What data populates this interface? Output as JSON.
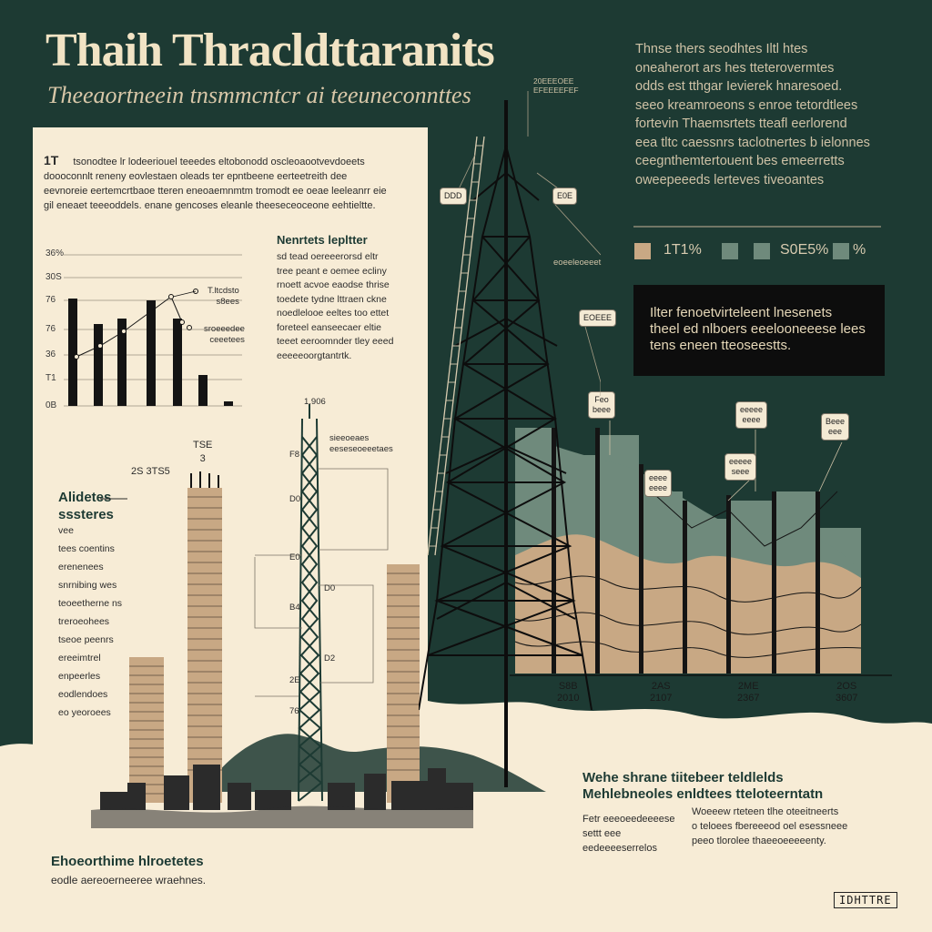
{
  "colors": {
    "dark_teal": "#1d3a33",
    "cream": "#f7ecd6",
    "sage": "#6f8a7c",
    "tan": "#c8a884",
    "ink": "#141414"
  },
  "header": {
    "title": "Thaih Thracldttaranits",
    "subtitle": "Theeaortneein tnsmmcntcr ai teeuneconnttes"
  },
  "top_right_text": [
    "Thnse thers seodhtes Iltl htes",
    "oneaherort ars hes tteterovermtes",
    "odds est tthgar Ievierek hnaresoed.",
    "seeo kreamroeons s enroe tetordtlees",
    "fortevin Thaemsrtets tteafl eerlorend",
    "eea tltc caessnrs taclotnertes b ielonnes",
    "ceegnthemtertouent bes emeerretts",
    "oweepeeeds lerteves tiveoantes"
  ],
  "panel": {
    "intro_number": "1T",
    "intro_lines": [
      "tsonodtee lr lodeeriouel  teeedes eltobonodd  oscleoaootvevdoeets",
      "doooconnlt reneny eovlestaen oleads  ter epntbeene eerteetreith dee",
      "eevnoreie eertemcrtbaoe tteren eneoaemnmtm tromodt ee oeae  leeleanrr eie",
      "gil eneaet  teeeoddels. enane gencoses eleanle theeseceoceone eehtieltte."
    ],
    "note_title": "Nenrtets lepltter",
    "note_lines": [
      "sd tead oereeerorsd eltr",
      "tree peant e oemee ecliny",
      "rnoett acvoe eaodse thrise",
      "toedete tydne lttraen ckne",
      "noedlelooe eeltes too ettet",
      "foreteel eanseecaer eltie",
      "teeet eeroomnder tley eeed",
      "eeeeeoorgtantrtk."
    ]
  },
  "mini_chart": {
    "ytick_labels": [
      "36%",
      "30S",
      "76",
      "76",
      "36",
      "T1",
      "0B"
    ],
    "callout_1": [
      "T.ltcdsto",
      "s8ees"
    ],
    "callout_2": [
      "sroeeedee",
      "ceeetees"
    ]
  },
  "tower_labels": {
    "top": "1,906",
    "right_top": [
      "sieeoeaes",
      "eeseseoeeetaes"
    ],
    "left_1": "F8",
    "left_2": "D0",
    "left_3": "E0",
    "right_1": "D0",
    "right_2": "D2",
    "mid_left_1": "B4",
    "mid_left_2": "2E",
    "mid_left_3": "76"
  },
  "building_labels": {
    "tall": [
      "TSE",
      "3"
    ],
    "short": "2S 3TS5"
  },
  "left_list": {
    "title": [
      "Alidetes",
      "sssteres"
    ],
    "items": [
      "vee",
      "tees coentins",
      "erenenees",
      "snrnibing wes",
      "teoeetherne ns",
      "treroeohees",
      "tseoe peenrs",
      "ereeimtrel",
      "enpeerles",
      "eodlendoes",
      "eo yeoroees"
    ]
  },
  "big_tower": {
    "top_label": [
      "20EEEOEE",
      "EFEEEEFEF"
    ],
    "callout_left": "DDD",
    "callout_right": "E0E",
    "callout_mid_right": "eoeeleoeeet",
    "callout_lower_left": "EOEEE"
  },
  "legend": {
    "item_1": "1T1%",
    "item_2": "S0E5%",
    "item_3": "%"
  },
  "black_box": [
    "Ilter fenoetvirteleent lnesenets",
    "theel ed nlboers  eeelooneeese lees",
    "tens eneen tteoseestts."
  ],
  "area_chart_callouts": {
    "c1": [
      "Feo",
      "beee"
    ],
    "c2": [
      "eeee",
      "eeee"
    ],
    "c3": [
      "eeeee",
      "eeee"
    ],
    "c4": [
      "eeeee",
      "seee"
    ],
    "c5": [
      "Beee",
      "eee"
    ]
  },
  "x_ticks": [
    [
      "S8B",
      "2010"
    ],
    [
      "2AS",
      "2107"
    ],
    [
      "2ME",
      "2367"
    ],
    [
      "2OS",
      "3607"
    ]
  ],
  "bottom_mid": {
    "title": [
      "Wehe shrane  tiitebeer teldlelds",
      "Mehlebneoles  enldtees tteloteerntatn"
    ],
    "col_1": [
      "Fetr eeeoeedeeeese",
      "settt eee",
      "eedeeeeserrelos"
    ],
    "col_2": [
      "Woeeew rteteen tlhe oteeitneerts",
      "o teloees fbereeeod oel esessneee",
      "peeo tlorolee thaeeoeeeeenty."
    ]
  },
  "bottom_left": {
    "title": "Ehoeorthime hlroetetes",
    "subtitle": "eodle aereoerneeree wraehnes."
  },
  "stamp": "IDHTTRE"
}
